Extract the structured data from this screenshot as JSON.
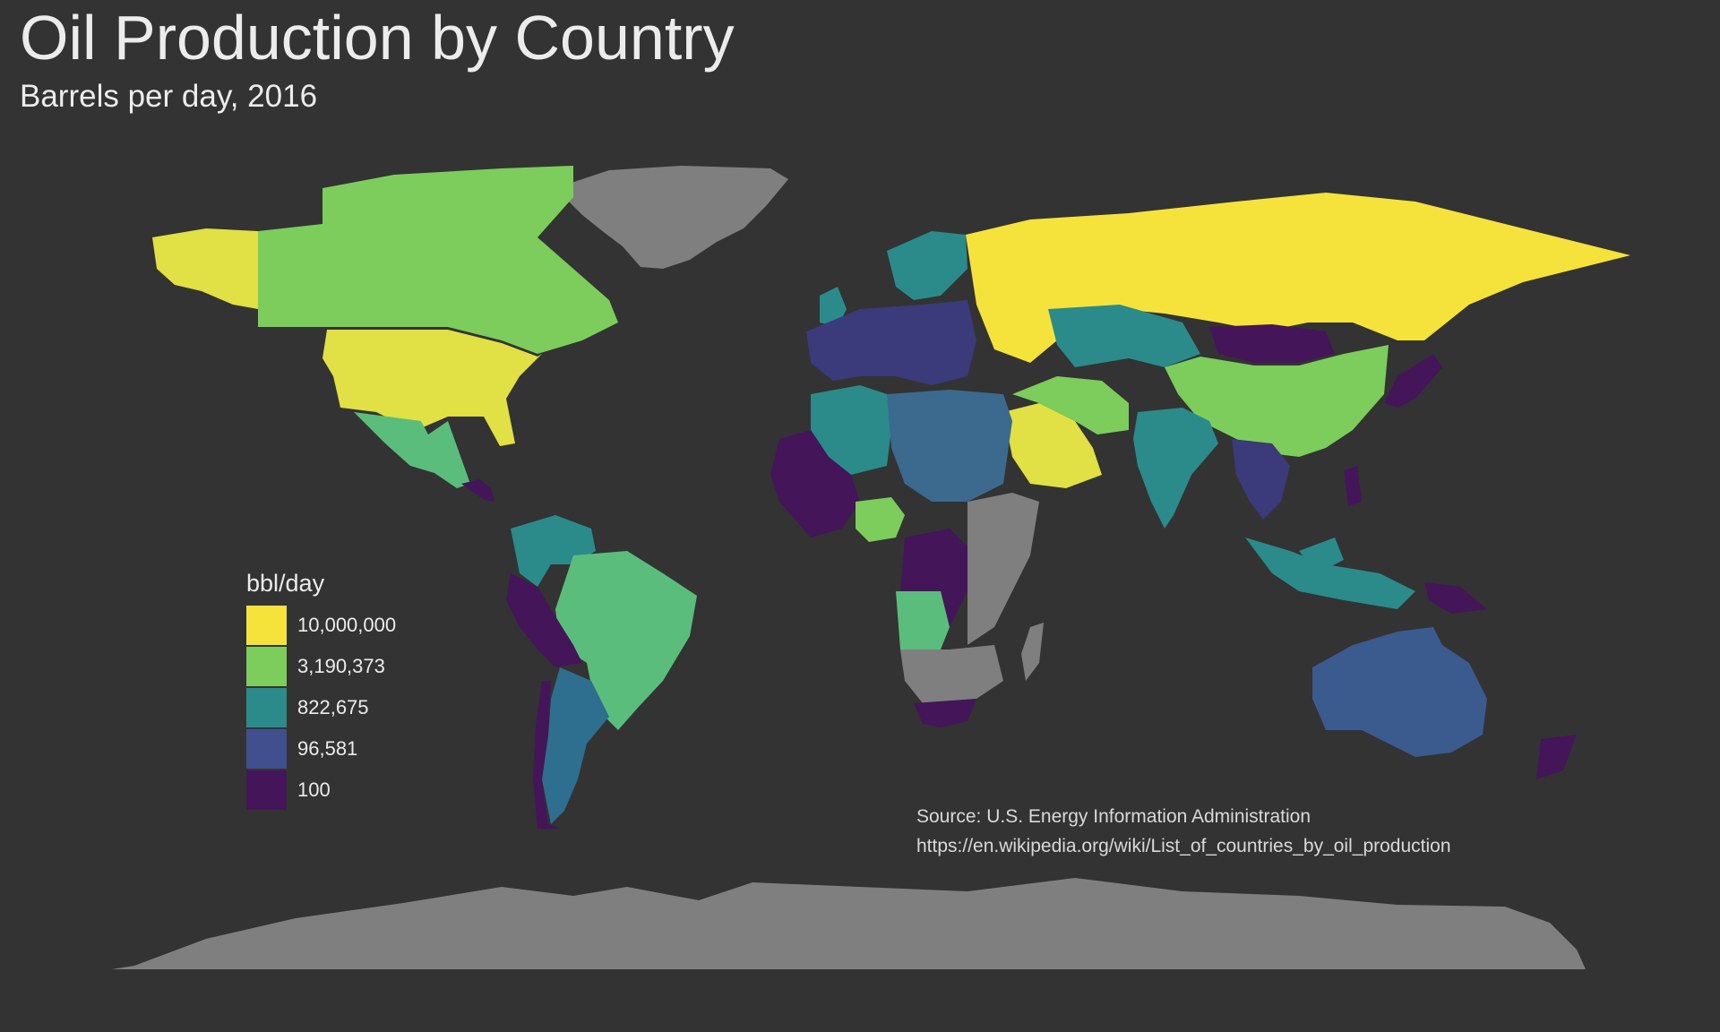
{
  "title": "Oil Production by Country",
  "subtitle": "Barrels per day, 2016",
  "legend": {
    "title": "bbl/day",
    "items": [
      {
        "label": "10,000,000",
        "color": "#f5e33b"
      },
      {
        "label": "3,190,373",
        "color": "#7ccd5b"
      },
      {
        "label": "822,675",
        "color": "#2a8b8a"
      },
      {
        "label": "96,581",
        "color": "#414f8f"
      },
      {
        "label": "100",
        "color": "#441559"
      }
    ]
  },
  "source": {
    "line1": "Source: U.S. Energy Information Administration",
    "line2": "https://en.wikipedia.org/wiki/List_of_countries_by_oil_production"
  },
  "colors": {
    "background": "#333333",
    "no_data": "#7f7f7f",
    "text": "#ececec"
  }
}
